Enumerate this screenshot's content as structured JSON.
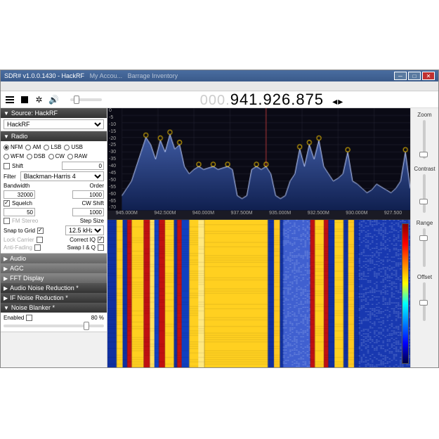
{
  "window": {
    "title": "SDR# v1.0.0.1430 - HackRF",
    "tabs": [
      "SDR#",
      "My Accou...",
      "Barrage Inventory"
    ]
  },
  "frequency": {
    "prefix": "000.",
    "main": "941.926.875"
  },
  "source": {
    "header": "Source: HackRF",
    "device": "HackRF"
  },
  "radio": {
    "header": "Radio",
    "modes_row1": [
      "NFM",
      "AM",
      "LSB",
      "USB"
    ],
    "modes_row2": [
      "WFM",
      "DSB",
      "CW",
      "RAW"
    ],
    "selected_mode": "NFM",
    "shift_label": "Shift",
    "shift_value": "0",
    "filter_label": "Filter",
    "filter_value": "Blackman-Harris 4",
    "bandwidth_label": "Bandwidth",
    "bandwidth_value": "32000",
    "order_label": "Order",
    "order_value": "1000",
    "squelch_label": "Squelch",
    "squelch_value": "50",
    "cwshift_label": "CW Shift",
    "cwshift_value": "1000",
    "fmstereo_label": "FM Stereo",
    "stepsize_label": "Step Size",
    "snap_label": "Snap to Grid",
    "snap_value": "12.5 kHz",
    "lockcarrier_label": "Lock Carrier",
    "correctiq_label": "Correct IQ",
    "antifading_label": "Anti-Fading",
    "swapiq_label": "Swap I & Q"
  },
  "panels": {
    "audio": "Audio",
    "agc": "AGC",
    "fft": "FFT Display",
    "anr": "Audio Noise Reduction *",
    "ifnr": "IF Noise Reduction *",
    "nb": "Noise Blanker *",
    "enabled_label": "Enabled",
    "enabled_value": "80 %"
  },
  "spectrum": {
    "y_ticks": [
      "0",
      "-5",
      "-10",
      "-15",
      "-20",
      "-25",
      "-30",
      "-35",
      "-40",
      "-45",
      "-50",
      "-55",
      "-60",
      "-65",
      "-70"
    ],
    "x_ticks": [
      "945.000M",
      "942.500M",
      "940.000M",
      "937.500M",
      "935.000M",
      "932.500M",
      "930.000M",
      "927.500"
    ],
    "ylim": [
      -70,
      0
    ],
    "fill_color": "#2a4a8a",
    "line_color": "#c0d0ff",
    "bg_color": "#0a0a15",
    "grid_color": "#2a2a3a",
    "values": [
      -60,
      -55,
      -50,
      -40,
      -30,
      -20,
      -25,
      -35,
      -22,
      -30,
      -18,
      -28,
      -25,
      -40,
      -45,
      -42,
      -40,
      -42,
      -41,
      -40,
      -42,
      -41,
      -40,
      -42,
      -60,
      -62,
      -60,
      -42,
      -40,
      -42,
      -40,
      -45,
      -60,
      -62,
      -60,
      -50,
      -45,
      -28,
      -40,
      -25,
      -35,
      -22,
      -40,
      -45,
      -50,
      -48,
      -45,
      -30,
      -50,
      -52,
      -55,
      -58,
      -56,
      -52,
      -54,
      -56,
      -58,
      -55,
      -50,
      -30,
      -55
    ]
  },
  "waterfall": {
    "bands": [
      {
        "x": 0,
        "w": 0.03,
        "color": "#1030a0"
      },
      {
        "x": 0.03,
        "w": 0.02,
        "color": "#ffd020"
      },
      {
        "x": 0.05,
        "w": 0.015,
        "color": "#1030a0"
      },
      {
        "x": 0.065,
        "w": 0.015,
        "color": "#c01010"
      },
      {
        "x": 0.08,
        "w": 0.04,
        "color": "#ffd020"
      },
      {
        "x": 0.12,
        "w": 0.02,
        "color": "#c01010"
      },
      {
        "x": 0.14,
        "w": 0.015,
        "color": "#ffe060"
      },
      {
        "x": 0.155,
        "w": 0.015,
        "color": "#1040c0"
      },
      {
        "x": 0.17,
        "w": 0.02,
        "color": "#c01010"
      },
      {
        "x": 0.19,
        "w": 0.03,
        "color": "#ffd020"
      },
      {
        "x": 0.22,
        "w": 0.01,
        "color": "#1030a0"
      },
      {
        "x": 0.23,
        "w": 0.015,
        "color": "#c01010"
      },
      {
        "x": 0.245,
        "w": 0.025,
        "color": "#1040c0"
      },
      {
        "x": 0.27,
        "w": 0.03,
        "color": "#ffd020"
      },
      {
        "x": 0.3,
        "w": 0.02,
        "color": "#ffe880"
      },
      {
        "x": 0.32,
        "w": 0.21,
        "color": "#ffd020"
      },
      {
        "x": 0.53,
        "w": 0.02,
        "color": "#1030a0"
      },
      {
        "x": 0.55,
        "w": 0.02,
        "color": "#ffc820"
      },
      {
        "x": 0.57,
        "w": 0.01,
        "color": "#1030a0"
      },
      {
        "x": 0.58,
        "w": 0.09,
        "color": "#4060d0",
        "noise": true
      },
      {
        "x": 0.67,
        "w": 0.015,
        "color": "#c01010"
      },
      {
        "x": 0.685,
        "w": 0.03,
        "color": "#ffd020"
      },
      {
        "x": 0.715,
        "w": 0.015,
        "color": "#c01010"
      },
      {
        "x": 0.73,
        "w": 0.02,
        "color": "#1030a0"
      },
      {
        "x": 0.75,
        "w": 0.03,
        "color": "#ffd020"
      },
      {
        "x": 0.78,
        "w": 0.015,
        "color": "#1030a0"
      },
      {
        "x": 0.795,
        "w": 0.02,
        "color": "#ffc820"
      },
      {
        "x": 0.815,
        "w": 0.015,
        "color": "#1030a0"
      },
      {
        "x": 0.83,
        "w": 0.17,
        "color": "#1838b0",
        "noise": true
      }
    ]
  },
  "sliders": {
    "zoom": "Zoom",
    "contrast": "Contrast",
    "range": "Range",
    "offset": "Offset"
  }
}
